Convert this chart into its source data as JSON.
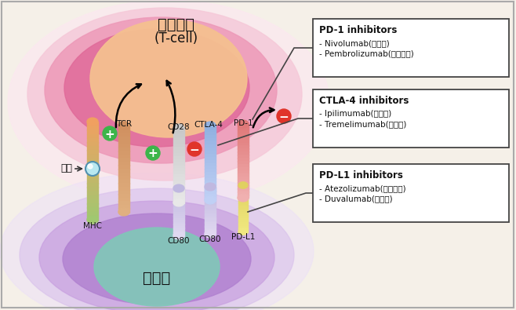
{
  "bg_color": "#f5f0e8",
  "title_immune": "면역세포",
  "title_immune_sub": "(T-cell)",
  "title_cancer": "암세포",
  "label_antigen": "항원",
  "label_MHC": "MHC",
  "label_TCR": "TCR",
  "label_CD28": "CD28",
  "label_CTLA4": "CTLA-4",
  "label_PD1": "PD-1",
  "label_CD80_1": "CD80",
  "label_CD80_2": "CD80",
  "label_PDL1": "PD-L1",
  "box1_title": "PD-1 inhibitors",
  "box1_line1": "- Nivolumab(옷디보)",
  "box1_line2": "- Pembrolizumab(키트루다)",
  "box2_title": "CTLA-4 inhibitors",
  "box2_line1": "- Ipilimumab(여보이)",
  "box2_line2": "- Tremelimumab(임주도)",
  "box3_title": "PD-L1 inhibitors",
  "box3_line1": "- Atezolizumab(티센트릭)",
  "box3_line2": "- Duvalumab(임핀지)",
  "plus_color": "#3cb54a",
  "minus_color": "#e0342a",
  "box_bg": "#ffffff",
  "box_border": "#444444",
  "immune_layers": [
    "#fce8f0",
    "#f5c0d0",
    "#ed90b0",
    "#e06090",
    "#f5c090"
  ],
  "cancer_layers": [
    "#ece0f8",
    "#d8c0ec",
    "#c8a0e0",
    "#b080d0",
    "#80c8b8"
  ],
  "tcr_colors": [
    "#f0a060",
    "#a0c870"
  ],
  "cd28_colors": [
    "#c0c0c0",
    "#e0e0e0"
  ],
  "ctla4_colors": [
    "#90b0e0",
    "#c0d0f0"
  ],
  "pd1_colors": [
    "#e07070",
    "#f0b0b0"
  ],
  "cd80_colors": [
    "#b0b8d0",
    "#d0d8e8"
  ],
  "pdl1_colors": [
    "#e0d060",
    "#f0e890"
  ]
}
